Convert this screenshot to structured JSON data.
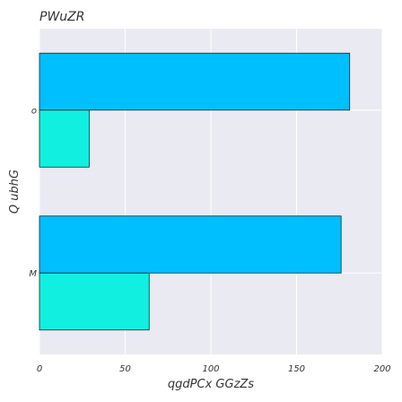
{
  "chart_data": {
    "type": "bar",
    "orientation": "horizontal",
    "title": "PWuZR",
    "xlabel": "qgdPCx GGzZs",
    "ylabel": "Q ubhG",
    "categories": [
      "o",
      "M"
    ],
    "series": [
      {
        "values": [
          181,
          176
        ],
        "color": "#00BFFF"
      },
      {
        "values": [
          29,
          64
        ],
        "color": "#11F0E0"
      }
    ],
    "xlim": [
      0,
      200
    ],
    "xticks": [
      0,
      50,
      100,
      150,
      200
    ],
    "grid": true,
    "legend": "none",
    "background": "#EAEAF2"
  }
}
